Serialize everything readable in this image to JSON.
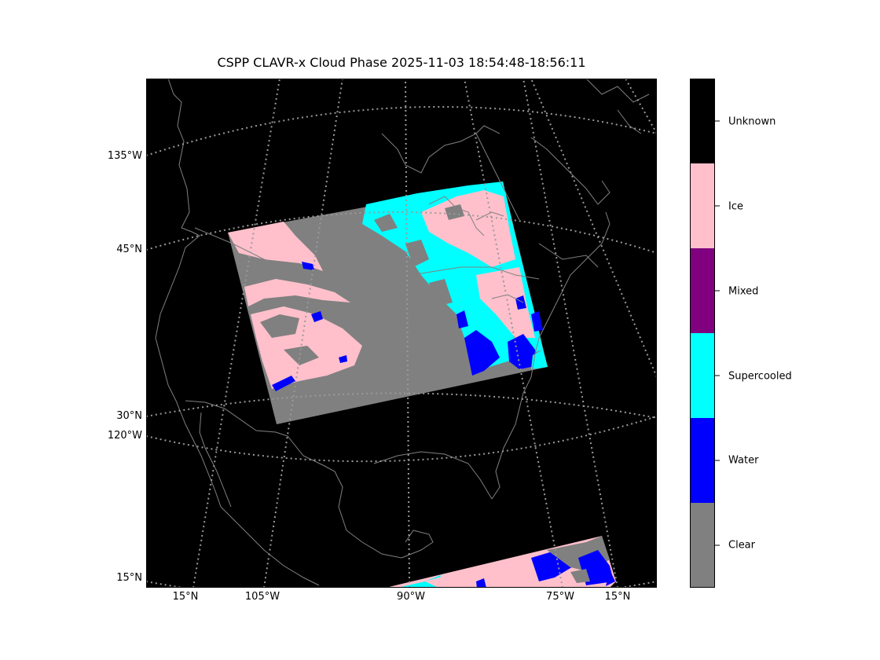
{
  "title": "CSPP CLAVR-x Cloud Phase 2025-11-03 18:54:48-18:56:11",
  "map": {
    "projection": "lambert conformal",
    "background_color": "#000000",
    "coastline_color": "#808080",
    "graticule_color": "#9a9a9a",
    "left_labels": [
      "135°W",
      "45°N",
      "30°N",
      "120°W",
      "15°N"
    ],
    "bottom_labels": [
      "15°N",
      "105°W",
      "90°W",
      "75°W",
      "15°N"
    ]
  },
  "legend": {
    "categories": [
      {
        "label": "Unknown",
        "color": "#000000"
      },
      {
        "label": "Ice",
        "color": "#ffc0cb"
      },
      {
        "label": "Mixed",
        "color": "#800080"
      },
      {
        "label": "Supercooled",
        "color": "#00ffff"
      },
      {
        "label": "Water",
        "color": "#0000ff"
      },
      {
        "label": "Clear",
        "color": "#808080"
      }
    ]
  }
}
